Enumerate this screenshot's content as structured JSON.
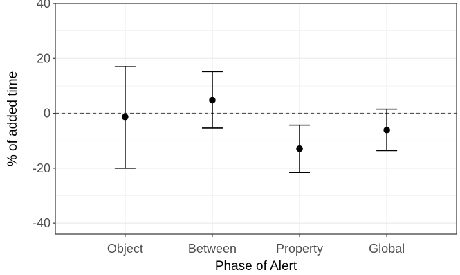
{
  "chart_data": {
    "type": "scatter",
    "xlabel": "Phase of Alert",
    "ylabel": "% of added time",
    "categories": [
      "Object",
      "Between",
      "Property",
      "Global"
    ],
    "series": [
      {
        "values": [
          -1.3,
          4.8,
          -12.9,
          -6.1
        ],
        "lower": [
          -20.0,
          -5.4,
          -21.6,
          -13.6
        ],
        "upper": [
          17.1,
          15.2,
          -4.3,
          1.5
        ]
      }
    ],
    "ylim": [
      -44,
      40
    ],
    "yticks": [
      -40,
      -20,
      0,
      20,
      40
    ],
    "ytick_labels": [
      "-40",
      "-20",
      "0",
      "20",
      "40"
    ],
    "reference_line": {
      "y": 0,
      "style": "dashed"
    },
    "grid": true
  }
}
